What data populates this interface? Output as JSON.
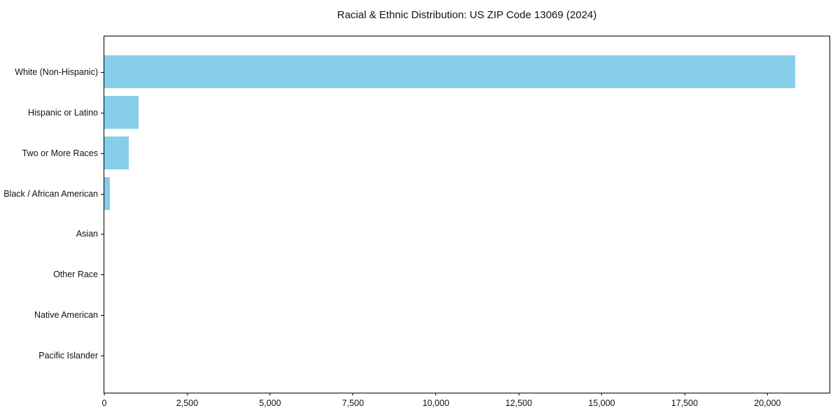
{
  "chart_data": {
    "type": "bar",
    "orientation": "horizontal",
    "title": "Racial & Ethnic Distribution: US ZIP Code 13069 (2024)",
    "categories": [
      "White (Non-Hispanic)",
      "Hispanic or Latino",
      "Two or More Races",
      "Black / African American",
      "Asian",
      "Other Race",
      "Native American",
      "Pacific Islander"
    ],
    "values": [
      20830,
      1040,
      730,
      170,
      0,
      0,
      0,
      0
    ],
    "xlabel": "",
    "ylabel": "",
    "xlim": [
      0,
      21871
    ],
    "x_ticks": [
      0,
      2500,
      5000,
      7500,
      10000,
      12500,
      15000,
      17500,
      20000
    ],
    "x_tick_labels": [
      "0",
      "2,500",
      "5,000",
      "7,500",
      "10,000",
      "12,500",
      "15,000",
      "17,500",
      "20,000"
    ],
    "bar_color": "#87ceeb",
    "axis_color": "#000000",
    "background_color": "#ffffff",
    "grid": false,
    "legend": null
  }
}
